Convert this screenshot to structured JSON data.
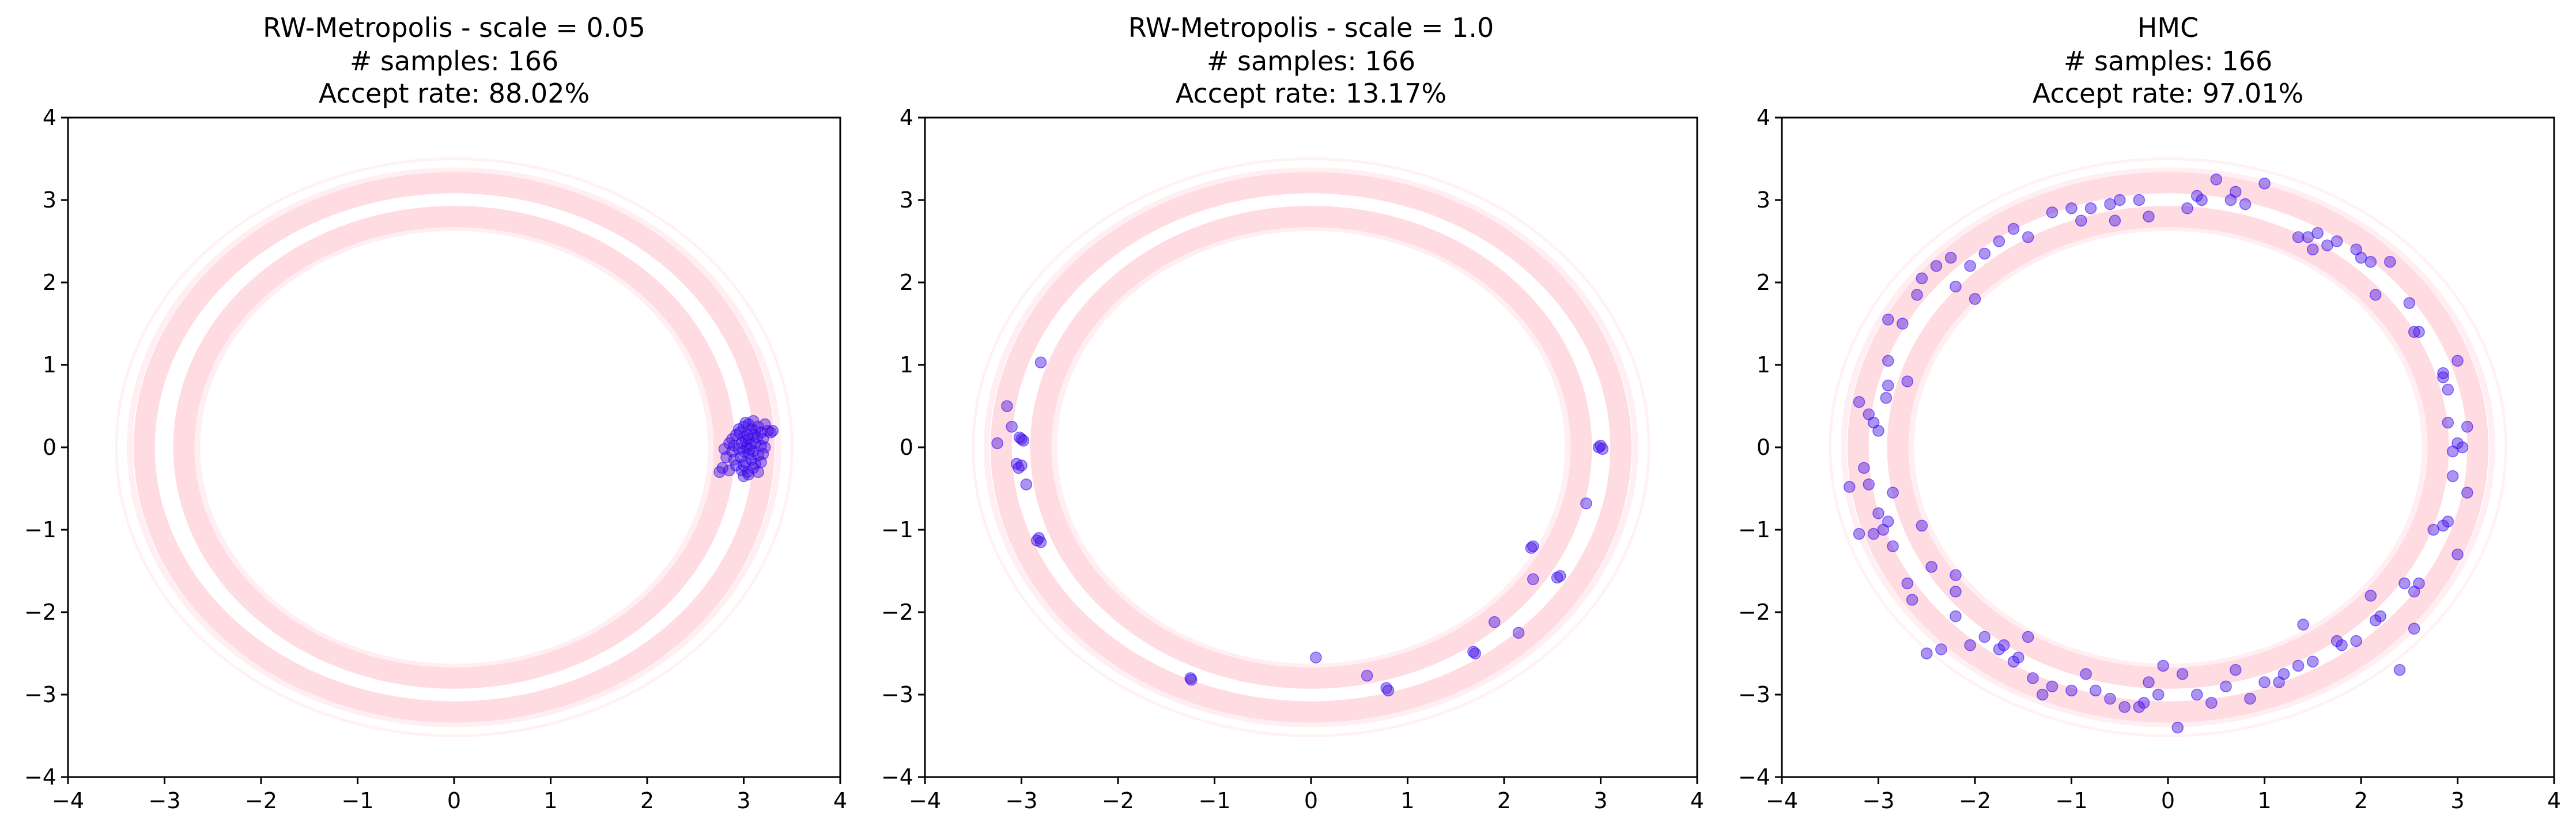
{
  "chart_data": [
    {
      "type": "scatter",
      "title_lines": [
        "RW-Metropolis - scale = 0.05",
        "# samples: 166",
        "Accept rate: 88.02%"
      ],
      "xlim": [
        -4,
        4
      ],
      "ylim": [
        -4,
        4
      ],
      "xticks": [
        "−4",
        "−3",
        "−2",
        "−1",
        "0",
        "1",
        "2",
        "3",
        "4"
      ],
      "yticks": [
        "−4",
        "−3",
        "−2",
        "−1",
        "0",
        "1",
        "2",
        "3",
        "4"
      ],
      "grid": false,
      "background_density": {
        "shape": "ring",
        "radius": 3.0,
        "band_color": "#ffdbe2"
      },
      "points": [
        [
          3.02,
          0.3
        ],
        [
          3.05,
          0.28
        ],
        [
          3.1,
          0.32
        ],
        [
          3.0,
          0.25
        ],
        [
          3.08,
          0.22
        ],
        [
          3.12,
          0.2
        ],
        [
          2.95,
          0.22
        ],
        [
          3.15,
          0.25
        ],
        [
          3.22,
          0.28
        ],
        [
          3.18,
          0.18
        ],
        [
          3.25,
          0.2
        ],
        [
          3.28,
          0.18
        ],
        [
          3.3,
          0.2
        ],
        [
          2.92,
          0.15
        ],
        [
          2.88,
          0.1
        ],
        [
          3.0,
          0.12
        ],
        [
          3.05,
          0.1
        ],
        [
          3.1,
          0.15
        ],
        [
          3.14,
          0.12
        ],
        [
          3.2,
          0.1
        ],
        [
          2.85,
          0.05
        ],
        [
          2.9,
          0.02
        ],
        [
          2.98,
          0.05
        ],
        [
          3.03,
          0.0
        ],
        [
          3.07,
          0.03
        ],
        [
          3.12,
          0.05
        ],
        [
          3.18,
          0.02
        ],
        [
          3.22,
          0.0
        ],
        [
          2.8,
          -0.02
        ],
        [
          2.88,
          -0.05
        ],
        [
          2.95,
          -0.02
        ],
        [
          3.0,
          -0.05
        ],
        [
          3.05,
          -0.08
        ],
        [
          3.1,
          -0.05
        ],
        [
          3.15,
          -0.1
        ],
        [
          3.2,
          -0.08
        ],
        [
          2.82,
          -0.12
        ],
        [
          2.9,
          -0.15
        ],
        [
          2.97,
          -0.12
        ],
        [
          3.02,
          -0.18
        ],
        [
          3.08,
          -0.15
        ],
        [
          3.12,
          -0.2
        ],
        [
          3.18,
          -0.18
        ],
        [
          2.78,
          -0.25
        ],
        [
          2.75,
          -0.3
        ],
        [
          2.85,
          -0.28
        ],
        [
          2.92,
          -0.22
        ],
        [
          2.98,
          -0.28
        ],
        [
          3.04,
          -0.3
        ],
        [
          3.1,
          -0.25
        ],
        [
          3.15,
          -0.3
        ],
        [
          3.0,
          -0.35
        ],
        [
          3.05,
          -0.33
        ],
        [
          2.96,
          0.18
        ],
        [
          3.02,
          0.08
        ],
        [
          3.06,
          -0.02
        ],
        [
          3.0,
          -0.22
        ],
        [
          3.04,
          0.15
        ]
      ]
    },
    {
      "type": "scatter",
      "title_lines": [
        "RW-Metropolis - scale = 1.0",
        "# samples: 166",
        "Accept rate: 13.17%"
      ],
      "xlim": [
        -4,
        4
      ],
      "ylim": [
        -4,
        4
      ],
      "xticks": [
        "−4",
        "−3",
        "−2",
        "−1",
        "0",
        "1",
        "2",
        "3",
        "4"
      ],
      "yticks": [
        "−4",
        "−3",
        "−2",
        "−1",
        "0",
        "1",
        "2",
        "3",
        "4"
      ],
      "grid": false,
      "background_density": {
        "shape": "ring",
        "radius": 3.0,
        "band_color": "#ffdbe2"
      },
      "points": [
        [
          -3.0,
          0.1
        ],
        [
          -3.02,
          0.12
        ],
        [
          -2.98,
          0.08
        ],
        [
          -3.05,
          -0.2
        ],
        [
          -3.03,
          -0.25
        ],
        [
          -3.0,
          -0.22
        ],
        [
          -3.1,
          0.25
        ],
        [
          -3.15,
          0.5
        ],
        [
          -3.25,
          0.05
        ],
        [
          -2.95,
          -0.45
        ],
        [
          -2.82,
          -1.1
        ],
        [
          -2.84,
          -1.13
        ],
        [
          -2.8,
          -1.15
        ],
        [
          -2.8,
          1.03
        ],
        [
          -1.25,
          -2.8
        ],
        [
          -1.24,
          -2.82
        ],
        [
          0.05,
          -2.55
        ],
        [
          0.58,
          -2.77
        ],
        [
          0.78,
          -2.92
        ],
        [
          0.8,
          -2.95
        ],
        [
          1.68,
          -2.48
        ],
        [
          1.7,
          -2.5
        ],
        [
          1.9,
          -2.12
        ],
        [
          2.15,
          -2.25
        ],
        [
          2.3,
          -1.6
        ],
        [
          2.28,
          -1.22
        ],
        [
          2.3,
          -1.2
        ],
        [
          2.55,
          -1.58
        ],
        [
          2.58,
          -1.56
        ],
        [
          2.85,
          -0.68
        ],
        [
          2.98,
          0.0
        ],
        [
          3.0,
          0.02
        ],
        [
          3.02,
          -0.02
        ]
      ]
    },
    {
      "type": "scatter",
      "title_lines": [
        "HMC",
        "# samples: 166",
        "Accept rate: 97.01%"
      ],
      "xlim": [
        -4,
        4
      ],
      "ylim": [
        -4,
        4
      ],
      "xticks": [
        "−4",
        "−3",
        "−2",
        "−1",
        "0",
        "1",
        "2",
        "3",
        "4"
      ],
      "yticks": [
        "−4",
        "−3",
        "−2",
        "−1",
        "0",
        "1",
        "2",
        "3",
        "4"
      ],
      "grid": false,
      "background_density": {
        "shape": "ring",
        "radius": 3.0,
        "band_color": "#ffdbe2"
      },
      "points": [
        [
          -3.3,
          -0.48
        ],
        [
          -3.2,
          0.55
        ],
        [
          -3.1,
          0.4
        ],
        [
          -3.05,
          0.3
        ],
        [
          -3.0,
          0.2
        ],
        [
          -3.15,
          -0.25
        ],
        [
          -3.1,
          -0.45
        ],
        [
          -3.2,
          -1.05
        ],
        [
          -3.05,
          -1.05
        ],
        [
          -2.95,
          -1.0
        ],
        [
          -2.9,
          -0.9
        ],
        [
          -3.0,
          -0.8
        ],
        [
          -2.85,
          -0.55
        ],
        [
          -2.9,
          0.75
        ],
        [
          -2.92,
          0.6
        ],
        [
          -2.7,
          0.8
        ],
        [
          -2.9,
          1.05
        ],
        [
          -2.9,
          1.55
        ],
        [
          -2.75,
          1.5
        ],
        [
          -2.6,
          1.85
        ],
        [
          -2.55,
          2.05
        ],
        [
          -2.4,
          2.2
        ],
        [
          -2.25,
          2.3
        ],
        [
          -2.05,
          2.2
        ],
        [
          -1.9,
          2.35
        ],
        [
          -2.2,
          1.95
        ],
        [
          -2.0,
          1.8
        ],
        [
          -1.75,
          2.5
        ],
        [
          -1.6,
          2.65
        ],
        [
          -1.45,
          2.55
        ],
        [
          -1.2,
          2.85
        ],
        [
          -1.0,
          2.9
        ],
        [
          -0.9,
          2.75
        ],
        [
          -0.8,
          2.9
        ],
        [
          -0.5,
          3.0
        ],
        [
          -0.3,
          3.0
        ],
        [
          -0.55,
          2.75
        ],
        [
          -0.2,
          2.8
        ],
        [
          0.2,
          2.9
        ],
        [
          0.3,
          3.05
        ],
        [
          0.35,
          3.0
        ],
        [
          0.5,
          3.25
        ],
        [
          0.65,
          3.0
        ],
        [
          0.7,
          3.1
        ],
        [
          0.8,
          2.95
        ],
        [
          1.0,
          3.2
        ],
        [
          1.35,
          2.55
        ],
        [
          1.45,
          2.55
        ],
        [
          1.55,
          2.6
        ],
        [
          1.65,
          2.45
        ],
        [
          1.75,
          2.5
        ],
        [
          1.95,
          2.4
        ],
        [
          2.1,
          2.25
        ],
        [
          2.3,
          2.25
        ],
        [
          2.15,
          1.85
        ],
        [
          2.0,
          2.3
        ],
        [
          1.5,
          2.4
        ],
        [
          2.5,
          1.75
        ],
        [
          2.6,
          1.4
        ],
        [
          2.55,
          1.4
        ],
        [
          2.85,
          0.9
        ],
        [
          2.85,
          0.85
        ],
        [
          2.9,
          0.7
        ],
        [
          3.0,
          1.05
        ],
        [
          3.1,
          0.25
        ],
        [
          3.0,
          0.05
        ],
        [
          3.1,
          -0.55
        ],
        [
          2.9,
          0.3
        ],
        [
          3.05,
          0.0
        ],
        [
          2.95,
          -0.05
        ],
        [
          2.95,
          -0.35
        ],
        [
          2.9,
          -0.9
        ],
        [
          2.85,
          -0.95
        ],
        [
          2.75,
          -1.0
        ],
        [
          3.0,
          -1.3
        ],
        [
          2.6,
          -1.65
        ],
        [
          2.55,
          -1.75
        ],
        [
          2.55,
          -2.2
        ],
        [
          2.45,
          -1.65
        ],
        [
          2.2,
          -2.05
        ],
        [
          2.15,
          -2.1
        ],
        [
          2.1,
          -1.8
        ],
        [
          1.95,
          -2.35
        ],
        [
          1.8,
          -2.4
        ],
        [
          1.75,
          -2.35
        ],
        [
          1.5,
          -2.6
        ],
        [
          1.35,
          -2.65
        ],
        [
          1.4,
          -2.15
        ],
        [
          1.2,
          -2.75
        ],
        [
          1.15,
          -2.85
        ],
        [
          1.0,
          -2.85
        ],
        [
          0.85,
          -3.05
        ],
        [
          0.7,
          -2.7
        ],
        [
          0.6,
          -2.9
        ],
        [
          0.45,
          -3.1
        ],
        [
          0.3,
          -3.0
        ],
        [
          0.15,
          -2.75
        ],
        [
          0.1,
          -3.4
        ],
        [
          -0.1,
          -3.0
        ],
        [
          -0.2,
          -2.85
        ],
        [
          -0.25,
          -3.1
        ],
        [
          -0.3,
          -3.15
        ],
        [
          -0.45,
          -3.15
        ],
        [
          -0.6,
          -3.05
        ],
        [
          -0.75,
          -2.95
        ],
        [
          -0.85,
          -2.75
        ],
        [
          -1.0,
          -2.95
        ],
        [
          -1.2,
          -2.9
        ],
        [
          -1.3,
          -3.0
        ],
        [
          -1.4,
          -2.8
        ],
        [
          -1.55,
          -2.55
        ],
        [
          -1.6,
          -2.6
        ],
        [
          -1.45,
          -2.3
        ],
        [
          -1.75,
          -2.45
        ],
        [
          -1.9,
          -2.3
        ],
        [
          -2.05,
          -2.4
        ],
        [
          -2.2,
          -1.55
        ],
        [
          -2.2,
          -1.75
        ],
        [
          -2.35,
          -2.45
        ],
        [
          -2.5,
          -2.5
        ],
        [
          -2.65,
          -1.85
        ],
        [
          -2.45,
          -1.45
        ],
        [
          -2.2,
          -2.05
        ],
        [
          -2.7,
          -1.65
        ],
        [
          -2.85,
          -1.2
        ],
        [
          -2.55,
          -0.95
        ],
        [
          -1.7,
          -2.4
        ],
        [
          -0.05,
          -2.65
        ],
        [
          2.4,
          -2.7
        ],
        [
          -0.6,
          2.95
        ]
      ]
    }
  ]
}
